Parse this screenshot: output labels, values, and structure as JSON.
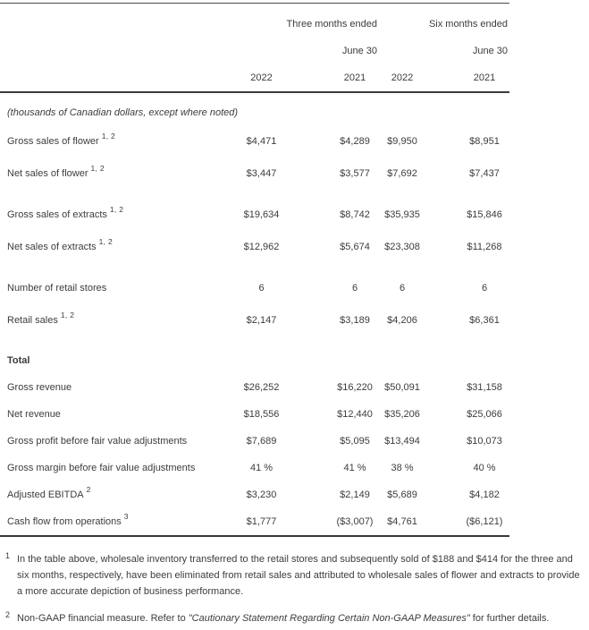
{
  "table": {
    "header": {
      "group_three_months": "Three months ended",
      "group_six_months": "Six months ended",
      "subheader_three_months": "June 30",
      "subheader_six_months": "June 30",
      "years": [
        "2022",
        "2021",
        "2022",
        "2021"
      ]
    },
    "units_note": "(thousands of Canadian dollars, except where noted)",
    "rows": [
      {
        "label": "Gross sales of flower",
        "sup": "1, 2",
        "section": "sales",
        "gap": "",
        "bold": false,
        "values": [
          "$4,471",
          "$4,289",
          "$9,950",
          "$8,951"
        ]
      },
      {
        "label": "Net sales of flower",
        "sup": "1, 2",
        "section": "sales",
        "gap": "",
        "bold": false,
        "values": [
          "$3,447",
          "$3,577",
          "$7,692",
          "$7,437"
        ]
      },
      {
        "label": "Gross sales of extracts",
        "sup": "1, 2",
        "section": "sales",
        "gap": "extracts",
        "bold": false,
        "values": [
          "$19,634",
          "$8,742",
          "$35,935",
          "$15,846"
        ]
      },
      {
        "label": "Net sales of extracts",
        "sup": "1, 2",
        "section": "sales",
        "gap": "",
        "bold": false,
        "values": [
          "$12,962",
          "$5,674",
          "$23,308",
          "$11,268"
        ]
      },
      {
        "label": "Number of retail stores",
        "sup": "",
        "section": "sales",
        "gap": "stores",
        "bold": false,
        "values": [
          "6",
          "6",
          "6",
          "6"
        ]
      },
      {
        "label": "Retail sales",
        "sup": "1, 2",
        "section": "sales",
        "gap": "",
        "bold": false,
        "values": [
          "$2,147",
          "$3,189",
          "$4,206",
          "$6,361"
        ]
      },
      {
        "label": "Total",
        "sup": "",
        "section": "totals",
        "gap": "total",
        "bold": true,
        "values": [
          "",
          "",
          "",
          ""
        ]
      },
      {
        "label": "Gross revenue",
        "sup": "",
        "section": "totals",
        "gap": "",
        "bold": false,
        "values": [
          "$26,252",
          "$16,220",
          "$50,091",
          "$31,158"
        ]
      },
      {
        "label": "Net revenue",
        "sup": "",
        "section": "totals",
        "gap": "",
        "bold": false,
        "values": [
          "$18,556",
          "$12,440",
          "$35,206",
          "$25,066"
        ]
      },
      {
        "label": "Gross profit before fair value adjustments",
        "sup": "",
        "section": "totals",
        "gap": "",
        "bold": false,
        "values": [
          "$7,689",
          "$5,095",
          "$13,494",
          "$10,073"
        ]
      },
      {
        "label": "Gross margin before fair value adjustments",
        "sup": "",
        "section": "totals",
        "gap": "",
        "bold": false,
        "values": [
          "41 %",
          "41 %",
          "38 %",
          "40 %"
        ]
      },
      {
        "label": "Adjusted EBITDA",
        "sup": "2",
        "section": "totals",
        "gap": "",
        "bold": false,
        "values": [
          "$3,230",
          "$2,149",
          "$5,689",
          "$4,182"
        ]
      },
      {
        "label": "Cash flow from operations",
        "sup": "3",
        "section": "totals",
        "gap": "",
        "bold": false,
        "values": [
          "$1,777",
          "($3,007)",
          "$4,761",
          "($6,121)"
        ]
      }
    ],
    "footnotes": [
      {
        "marker": "1",
        "parts": [
          {
            "text": "In the table above, wholesale inventory transferred to the retail stores and subsequently sold of $188 and $414 for the three and six months, respectively, have been eliminated from retail sales and attributed to wholesale sales of flower and extracts to provide a more accurate depiction of business performance.",
            "italic": false
          }
        ]
      },
      {
        "marker": "2",
        "parts": [
          {
            "text": "Non-GAAP financial measure. Refer to ",
            "italic": false
          },
          {
            "text": "\"Cautionary Statement Regarding Certain Non-GAAP Measures\"",
            "italic": true
          },
          {
            "text": " for further details.",
            "italic": false
          }
        ]
      }
    ]
  }
}
